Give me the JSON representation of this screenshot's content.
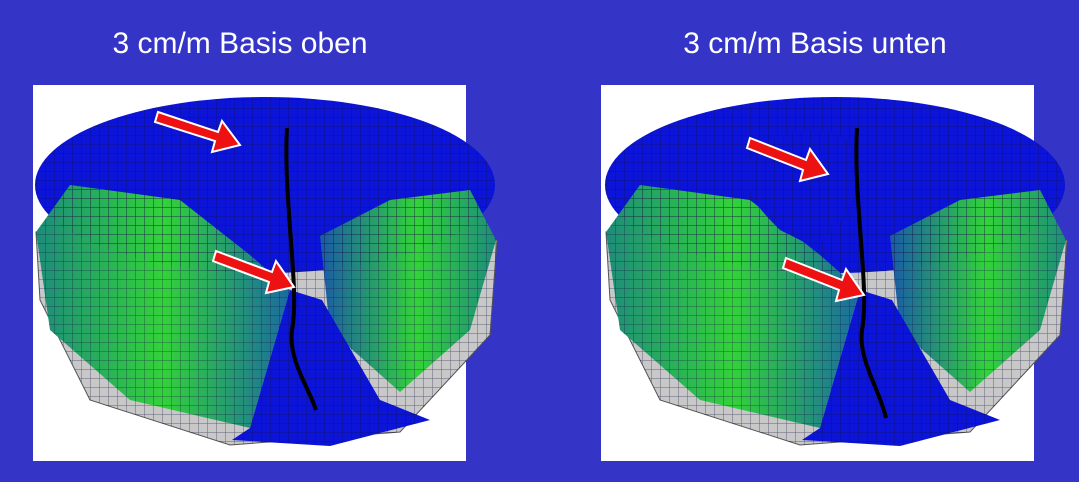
{
  "panels": [
    {
      "title": "3 cm/m Basis oben"
    },
    {
      "title": "3 cm/m Basis unten"
    }
  ]
}
